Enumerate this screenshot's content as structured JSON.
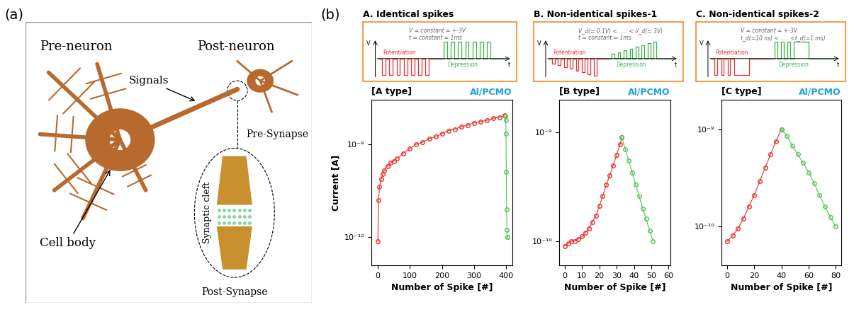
{
  "panel_a": {
    "label": "(a)",
    "texts": {
      "pre_neuron": "Pre-neuron",
      "post_neuron": "Post-neuron",
      "signals": "Signals",
      "pre_synapse": "Pre-Synapse",
      "synaptic_cleft": "Synaptic cleft",
      "cell_body": "Cell body",
      "post_synapse": "Post-Synapse"
    }
  },
  "panel_b": {
    "label": "(b)",
    "schemes": [
      {
        "title": "A. Identical spikes",
        "conditions": [
          "V = constant = +-3V",
          "t = constant = 1ms"
        ],
        "axis_labels": {
          "y": "V",
          "x": "t"
        },
        "phases": [
          "Potentiation",
          "Depression"
        ]
      },
      {
        "title": "B. Non-identical spikes-1",
        "conditions": [
          "V_d(= 0.1V) < ..... < V_d(= 3V)",
          "t = constant = 1ms"
        ],
        "axis_labels": {
          "y": "V",
          "x": "t"
        },
        "phases": [
          "Potentiation",
          "Depression"
        ]
      },
      {
        "title": "C. Non-identical spikes-2",
        "conditions": [
          "V = constant = +-3V",
          "t_d(=10 ns) < ..... <t_d(=1 ms)"
        ],
        "axis_labels": {
          "y": "V",
          "x": "t"
        },
        "phases": [
          "Potentiation",
          "Depression"
        ]
      }
    ]
  },
  "chart_data": [
    {
      "type": "line",
      "title": "[A type]",
      "annotation": "Al/PCMO",
      "x_label": "Number of Spike [#]",
      "y_label": "Current [A]",
      "log": "y",
      "xlim": [
        -20,
        420
      ],
      "xticks": [
        0,
        100,
        200,
        300,
        400
      ],
      "ylim": [
        5e-11,
        3e-09
      ],
      "yticks": [
        {
          "value": 1e-10,
          "label": "10⁻¹⁰"
        },
        {
          "value": 1e-09,
          "label": "10⁻⁹"
        }
      ],
      "series": [
        {
          "color": "#e8302c",
          "marker": "o",
          "line_style": "solid",
          "x": [
            0,
            2,
            5,
            10,
            15,
            20,
            30,
            40,
            50,
            60,
            80,
            100,
            120,
            140,
            160,
            180,
            200,
            220,
            240,
            260,
            280,
            300,
            320,
            340,
            360,
            380,
            395
          ],
          "values": [
            9e-11,
            2.5e-10,
            3.5e-10,
            4.2e-10,
            4.8e-10,
            5.2e-10,
            5.8e-10,
            6.3e-10,
            6.6e-10,
            7e-10,
            8e-10,
            9e-10,
            1e-09,
            1.05e-09,
            1.15e-09,
            1.2e-09,
            1.3e-09,
            1.4e-09,
            1.45e-09,
            1.55e-09,
            1.6e-09,
            1.7e-09,
            1.75e-09,
            1.8e-09,
            1.9e-09,
            1.95e-09,
            2.05e-09
          ]
        },
        {
          "color": "#55c455",
          "marker": "o",
          "line_style": "solid",
          "x": [
            398,
            399,
            400,
            401,
            402,
            403,
            404,
            405
          ],
          "values": [
            2e-09,
            1.8e-09,
            1.3e-09,
            5e-10,
            2e-10,
            1.2e-10,
            1e-10,
            1e-10
          ]
        }
      ]
    },
    {
      "type": "line",
      "title": "[B type]",
      "annotation": "Al/PCMO",
      "x_label": "Number of Spike [#]",
      "log": "y",
      "xlim": [
        -3,
        61
      ],
      "xticks": [
        0,
        10,
        20,
        30,
        40,
        50,
        60
      ],
      "ylim": [
        6e-11,
        2e-09
      ],
      "yticks": [
        {
          "value": 1e-10,
          "label": "10⁻¹⁰"
        },
        {
          "value": 1e-09,
          "label": "10⁻⁹"
        }
      ],
      "series": [
        {
          "color": "#e8302c",
          "marker": "o",
          "line_style": "solid",
          "x": [
            0,
            2,
            4,
            6,
            8,
            10,
            12,
            14,
            16,
            18,
            20,
            22,
            24,
            26,
            28,
            30,
            32,
            33
          ],
          "values": [
            9e-11,
            9.5e-11,
            1e-10,
            1e-10,
            1.05e-10,
            1.1e-10,
            1.2e-10,
            1.3e-10,
            1.5e-10,
            1.7e-10,
            2.1e-10,
            2.6e-10,
            3.3e-10,
            4e-10,
            5e-10,
            6.2e-10,
            7.8e-10,
            9e-10
          ]
        },
        {
          "color": "#55c455",
          "marker": "o",
          "line_style": "solid",
          "x": [
            33,
            35,
            37,
            39,
            41,
            43,
            45,
            47,
            49,
            51
          ],
          "values": [
            9e-10,
            7e-10,
            5.5e-10,
            4.3e-10,
            3.3e-10,
            2.6e-10,
            2e-10,
            1.6e-10,
            1.25e-10,
            1e-10
          ]
        }
      ]
    },
    {
      "type": "line",
      "title": "[C type]",
      "annotation": "Al/PCMO",
      "x_label": "Number of Spike [#]",
      "log": "y",
      "xlim": [
        -4,
        84
      ],
      "xticks": [
        0,
        20,
        40,
        60,
        80
      ],
      "ylim": [
        4e-11,
        2e-09
      ],
      "yticks": [
        {
          "value": 1e-10,
          "label": "10⁻¹⁰"
        },
        {
          "value": 1e-09,
          "label": "10⁻⁹"
        }
      ],
      "series": [
        {
          "color": "#e8302c",
          "marker": "o",
          "line_style": "solid",
          "x": [
            0,
            4,
            8,
            12,
            16,
            20,
            24,
            28,
            32,
            36,
            40
          ],
          "values": [
            7e-11,
            8e-11,
            9.5e-11,
            1.2e-10,
            1.6e-10,
            2.1e-10,
            2.9e-10,
            4e-10,
            5.5e-10,
            7.5e-10,
            1e-09
          ]
        },
        {
          "color": "#55c455",
          "marker": "o",
          "line_style": "solid",
          "x": [
            40,
            44,
            48,
            52,
            56,
            60,
            64,
            68,
            72,
            76,
            80
          ],
          "values": [
            1e-09,
            8.5e-10,
            6.8e-10,
            5.5e-10,
            4.5e-10,
            3.6e-10,
            2.8e-10,
            2.1e-10,
            1.6e-10,
            1.25e-10,
            1e-10
          ]
        }
      ]
    }
  ]
}
